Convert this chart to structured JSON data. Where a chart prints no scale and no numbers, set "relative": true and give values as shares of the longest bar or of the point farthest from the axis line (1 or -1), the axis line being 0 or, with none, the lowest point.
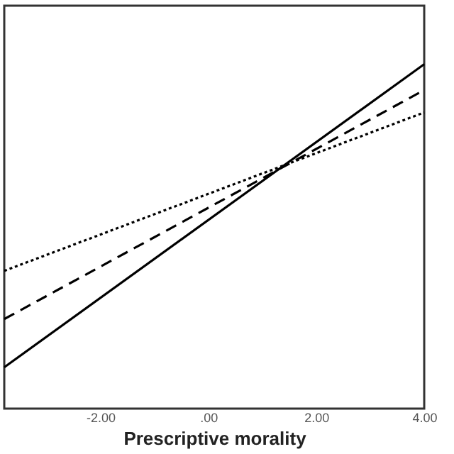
{
  "chart_data": {
    "type": "line",
    "xlabel": "Prescriptive morality",
    "relative": true,
    "grid": false,
    "xlim": [
      -3.78,
      4.0
    ],
    "xticks": [
      {
        "value": -2,
        "label": "-2.00"
      },
      {
        "value": 0,
        "label": ".00"
      },
      {
        "value": 2,
        "label": "2.00"
      },
      {
        "value": 4,
        "label": "4.00"
      }
    ],
    "x": [
      -3.78,
      4.0
    ],
    "series": [
      {
        "color": "#000000",
        "line_style": "solid",
        "values": [
          0.12,
          1.0
        ]
      },
      {
        "color": "#000000",
        "line_style": "dashed",
        "values": [
          0.26,
          0.925
        ]
      },
      {
        "color": "#000000",
        "line_style": "dotted",
        "values": [
          0.4,
          0.86
        ]
      }
    ],
    "marker": "none"
  }
}
